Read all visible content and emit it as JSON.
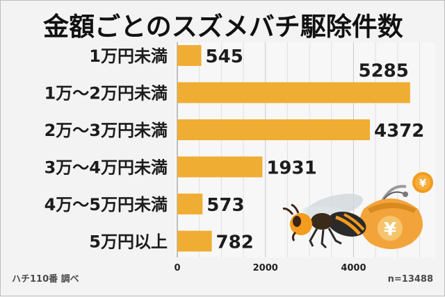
{
  "chart_data": {
    "type": "bar",
    "orientation": "horizontal",
    "title": "金額ごとのスズメバチ駆除件数",
    "categories": [
      "1万円未満",
      "1万〜2万円未満",
      "2万〜3万円未満",
      "3万〜4万円未満",
      "4万〜5万円未満",
      "5万円以上"
    ],
    "values": [
      545,
      5285,
      4372,
      1931,
      573,
      782
    ],
    "xticks": [
      0,
      2000,
      4000
    ],
    "xlim": [
      0,
      5650
    ],
    "grid": true,
    "bar_color": "#f0ad33",
    "source_note": "ハチ110番 調べ",
    "sample_note": "n=13488"
  },
  "illustration": {
    "hornet": "hornet-icon",
    "purse": "purse-icon",
    "yen_symbol": "¥",
    "hornet_color": "#f39c1e",
    "purse_color": "#f2a43a"
  }
}
